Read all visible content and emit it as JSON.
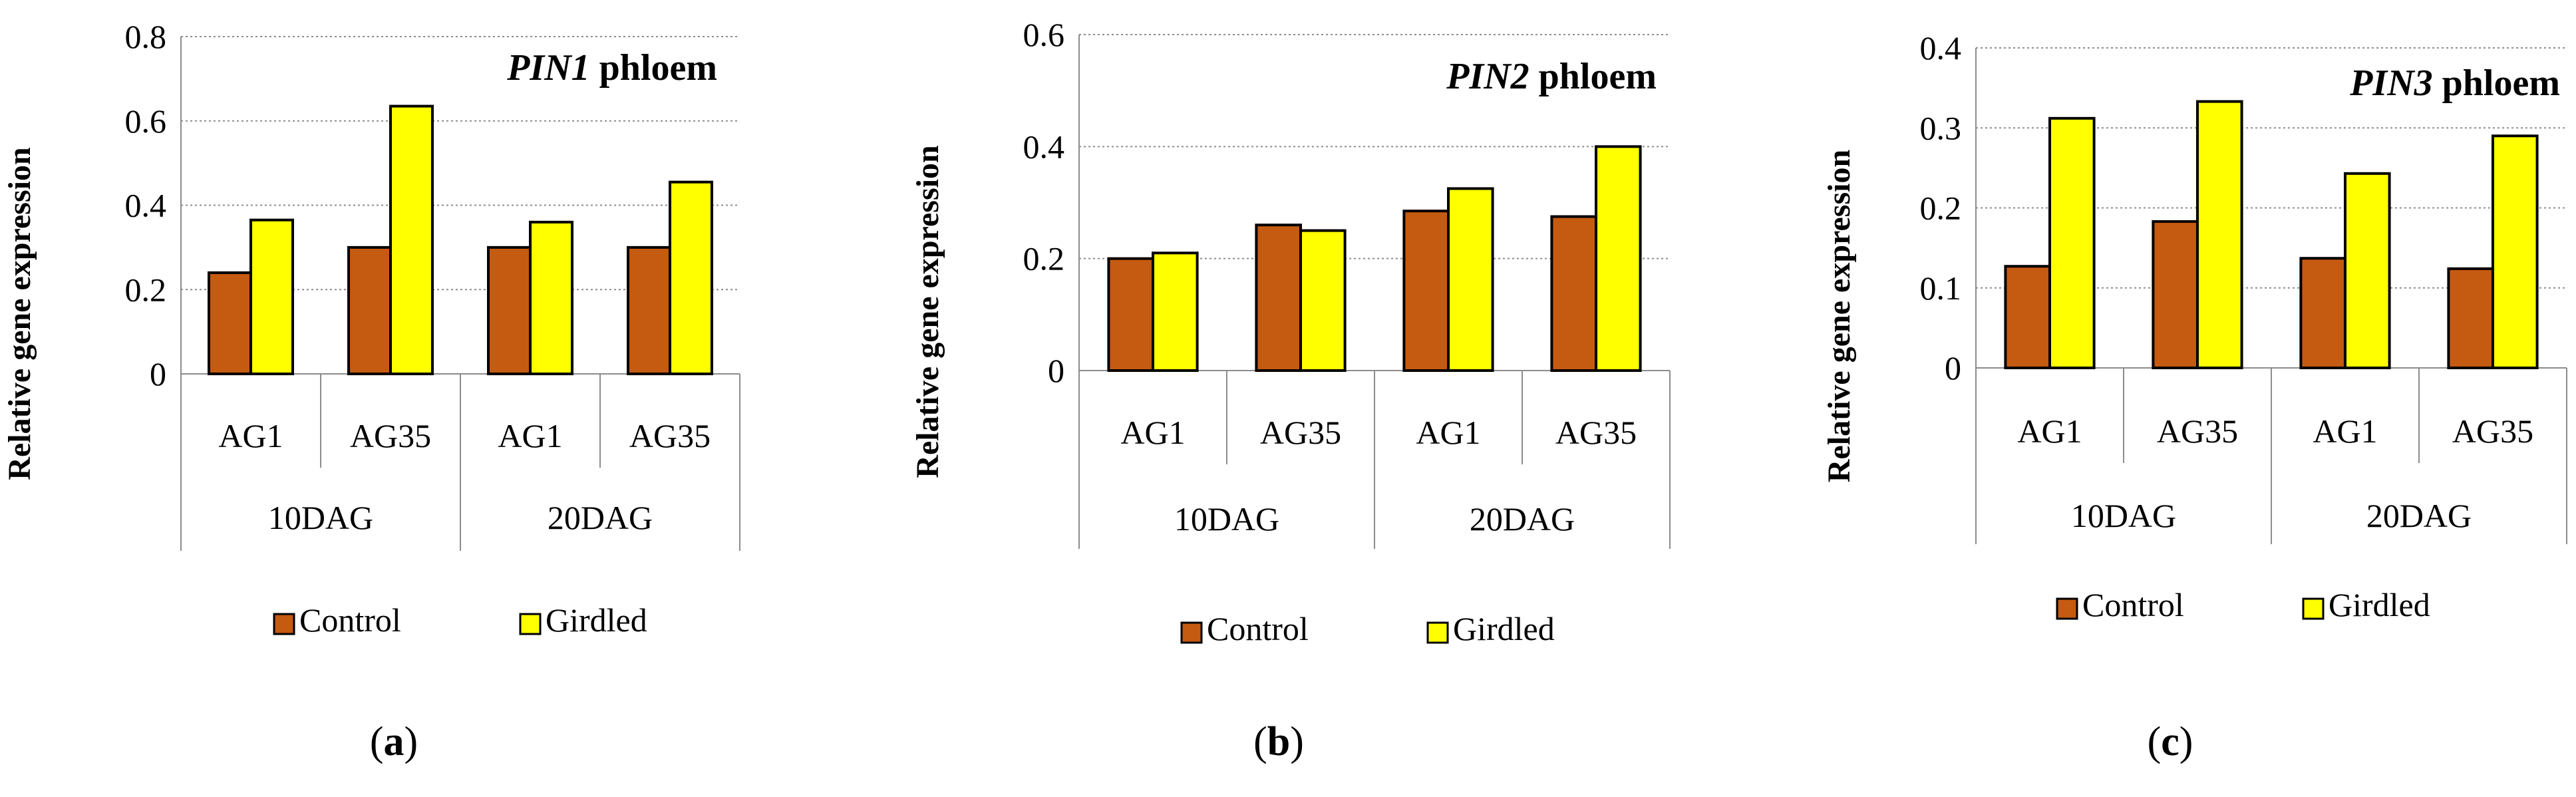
{
  "series_colors": {
    "Control": "#C55A11",
    "Girdled": "#FFFF00"
  },
  "chart_data": [
    {
      "type": "bar",
      "panel": "(a)",
      "panel_letter": "a",
      "title_gene": "PIN1",
      "title_rest": " phloem",
      "ylabel": "Relative gene expression",
      "ylim": [
        0,
        0.8
      ],
      "yticks": [
        "0",
        "0.2",
        "0.4",
        "0.6",
        "0.8"
      ],
      "ytick_values": [
        0,
        0.2,
        0.4,
        0.6,
        0.8
      ],
      "categories": [
        "AG1",
        "AG35",
        "AG1",
        "AG35"
      ],
      "groups": [
        "10DAG",
        "20DAG"
      ],
      "series": [
        {
          "name": "Control",
          "values": [
            0.24,
            0.3,
            0.3,
            0.3
          ]
        },
        {
          "name": "Girdled",
          "values": [
            0.365,
            0.635,
            0.36,
            0.455
          ]
        }
      ],
      "legend": [
        "Control",
        "Girdled"
      ],
      "grid": true
    },
    {
      "type": "bar",
      "panel": "(b)",
      "panel_letter": "b",
      "title_gene": "PIN2",
      "title_rest": " phloem",
      "ylabel": "Relative gene expression",
      "ylim": [
        0,
        0.6
      ],
      "yticks": [
        "0",
        "0.2",
        "0.4",
        "0.6"
      ],
      "ytick_values": [
        0,
        0.2,
        0.4,
        0.6
      ],
      "categories": [
        "AG1",
        "AG35",
        "AG1",
        "AG35"
      ],
      "groups": [
        "10DAG",
        "20DAG"
      ],
      "series": [
        {
          "name": "Control",
          "values": [
            0.2,
            0.26,
            0.285,
            0.275
          ]
        },
        {
          "name": "Girdled",
          "values": [
            0.21,
            0.25,
            0.325,
            0.4
          ]
        }
      ],
      "legend": [
        "Control",
        "Girdled"
      ],
      "grid": true
    },
    {
      "type": "bar",
      "panel": "(c)",
      "panel_letter": "c",
      "title_gene": "PIN3",
      "title_rest": " phloem",
      "ylabel": "Relative gene expression",
      "ylim": [
        0,
        0.4
      ],
      "yticks": [
        "0",
        "0.1",
        "0.2",
        "0.3",
        "0.4"
      ],
      "ytick_values": [
        0,
        0.1,
        0.2,
        0.3,
        0.4
      ],
      "categories": [
        "AG1",
        "AG35",
        "AG1",
        "AG35"
      ],
      "groups": [
        "10DAG",
        "20DAG"
      ],
      "series": [
        {
          "name": "Control",
          "values": [
            0.127,
            0.183,
            0.137,
            0.124
          ]
        },
        {
          "name": "Girdled",
          "values": [
            0.312,
            0.333,
            0.243,
            0.29
          ]
        }
      ],
      "legend": [
        "Control",
        "Girdled"
      ],
      "grid": true
    }
  ]
}
